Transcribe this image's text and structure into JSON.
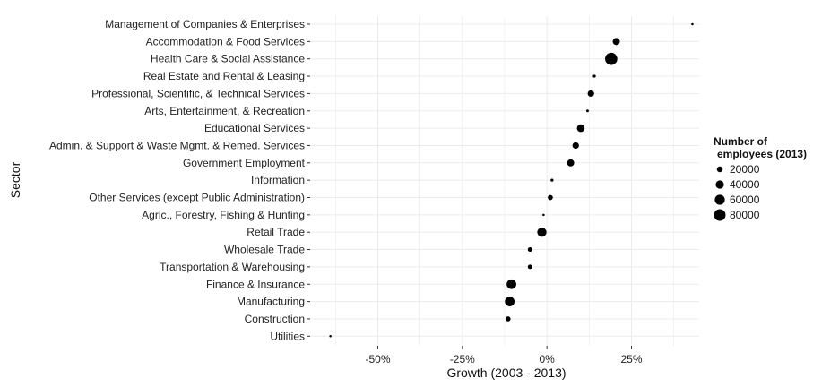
{
  "chart_data": {
    "type": "scatter",
    "xlabel": "Growth (2003 - 2013)",
    "ylabel": "Sector",
    "xlim": [
      -70,
      45
    ],
    "x_ticks": [
      {
        "value": -50,
        "label": "-50%"
      },
      {
        "value": -25,
        "label": "-25%"
      },
      {
        "value": 0,
        "label": "0%"
      },
      {
        "value": 25,
        "label": "25%"
      }
    ],
    "grid": true,
    "legend": {
      "title_lines": [
        "Number of",
        "employees (2013)"
      ],
      "placement": "right",
      "entries": [
        {
          "label": "20000",
          "value": 20000
        },
        {
          "label": "40000",
          "value": 40000
        },
        {
          "label": "60000",
          "value": 60000
        },
        {
          "label": "80000",
          "value": 80000
        }
      ]
    },
    "points": [
      {
        "sector": "Management of Companies & Enterprises",
        "growth": 43,
        "employees": 3000
      },
      {
        "sector": "Accommodation & Food Services",
        "growth": 20.5,
        "employees": 30000
      },
      {
        "sector": "Health Care & Social Assistance",
        "growth": 19,
        "employees": 88000
      },
      {
        "sector": "Real Estate and Rental & Leasing",
        "growth": 14,
        "employees": 5000
      },
      {
        "sector": "Professional, Scientific, & Technical Services",
        "growth": 13,
        "employees": 25000
      },
      {
        "sector": "Arts, Entertainment, & Recreation",
        "growth": 12,
        "employees": 4000
      },
      {
        "sector": "Educational Services",
        "growth": 10,
        "employees": 35000
      },
      {
        "sector": "Admin. & Support & Waste Mgmt. & Remed. Services",
        "growth": 8.5,
        "employees": 25000
      },
      {
        "sector": "Government Employment",
        "growth": 7,
        "employees": 30000
      },
      {
        "sector": "Information",
        "growth": 1.5,
        "employees": 5000
      },
      {
        "sector": "Other Services (except Public Administration)",
        "growth": 1,
        "employees": 15000
      },
      {
        "sector": "Agric., Forestry, Fishing & Hunting",
        "growth": -1,
        "employees": 3000
      },
      {
        "sector": "Retail Trade",
        "growth": -1.5,
        "employees": 50000
      },
      {
        "sector": "Wholesale Trade",
        "growth": -5,
        "employees": 12000
      },
      {
        "sector": "Transportation & Warehousing",
        "growth": -5,
        "employees": 12000
      },
      {
        "sector": "Finance & Insurance",
        "growth": -10.5,
        "employees": 55000
      },
      {
        "sector": "Manufacturing",
        "growth": -11,
        "employees": 55000
      },
      {
        "sector": "Construction",
        "growth": -11.5,
        "employees": 15000
      },
      {
        "sector": "Utilities",
        "growth": -64,
        "employees": 3000
      }
    ]
  },
  "colors": {
    "point": "#000000",
    "grid": "#ebebeb",
    "text": "#222222"
  }
}
